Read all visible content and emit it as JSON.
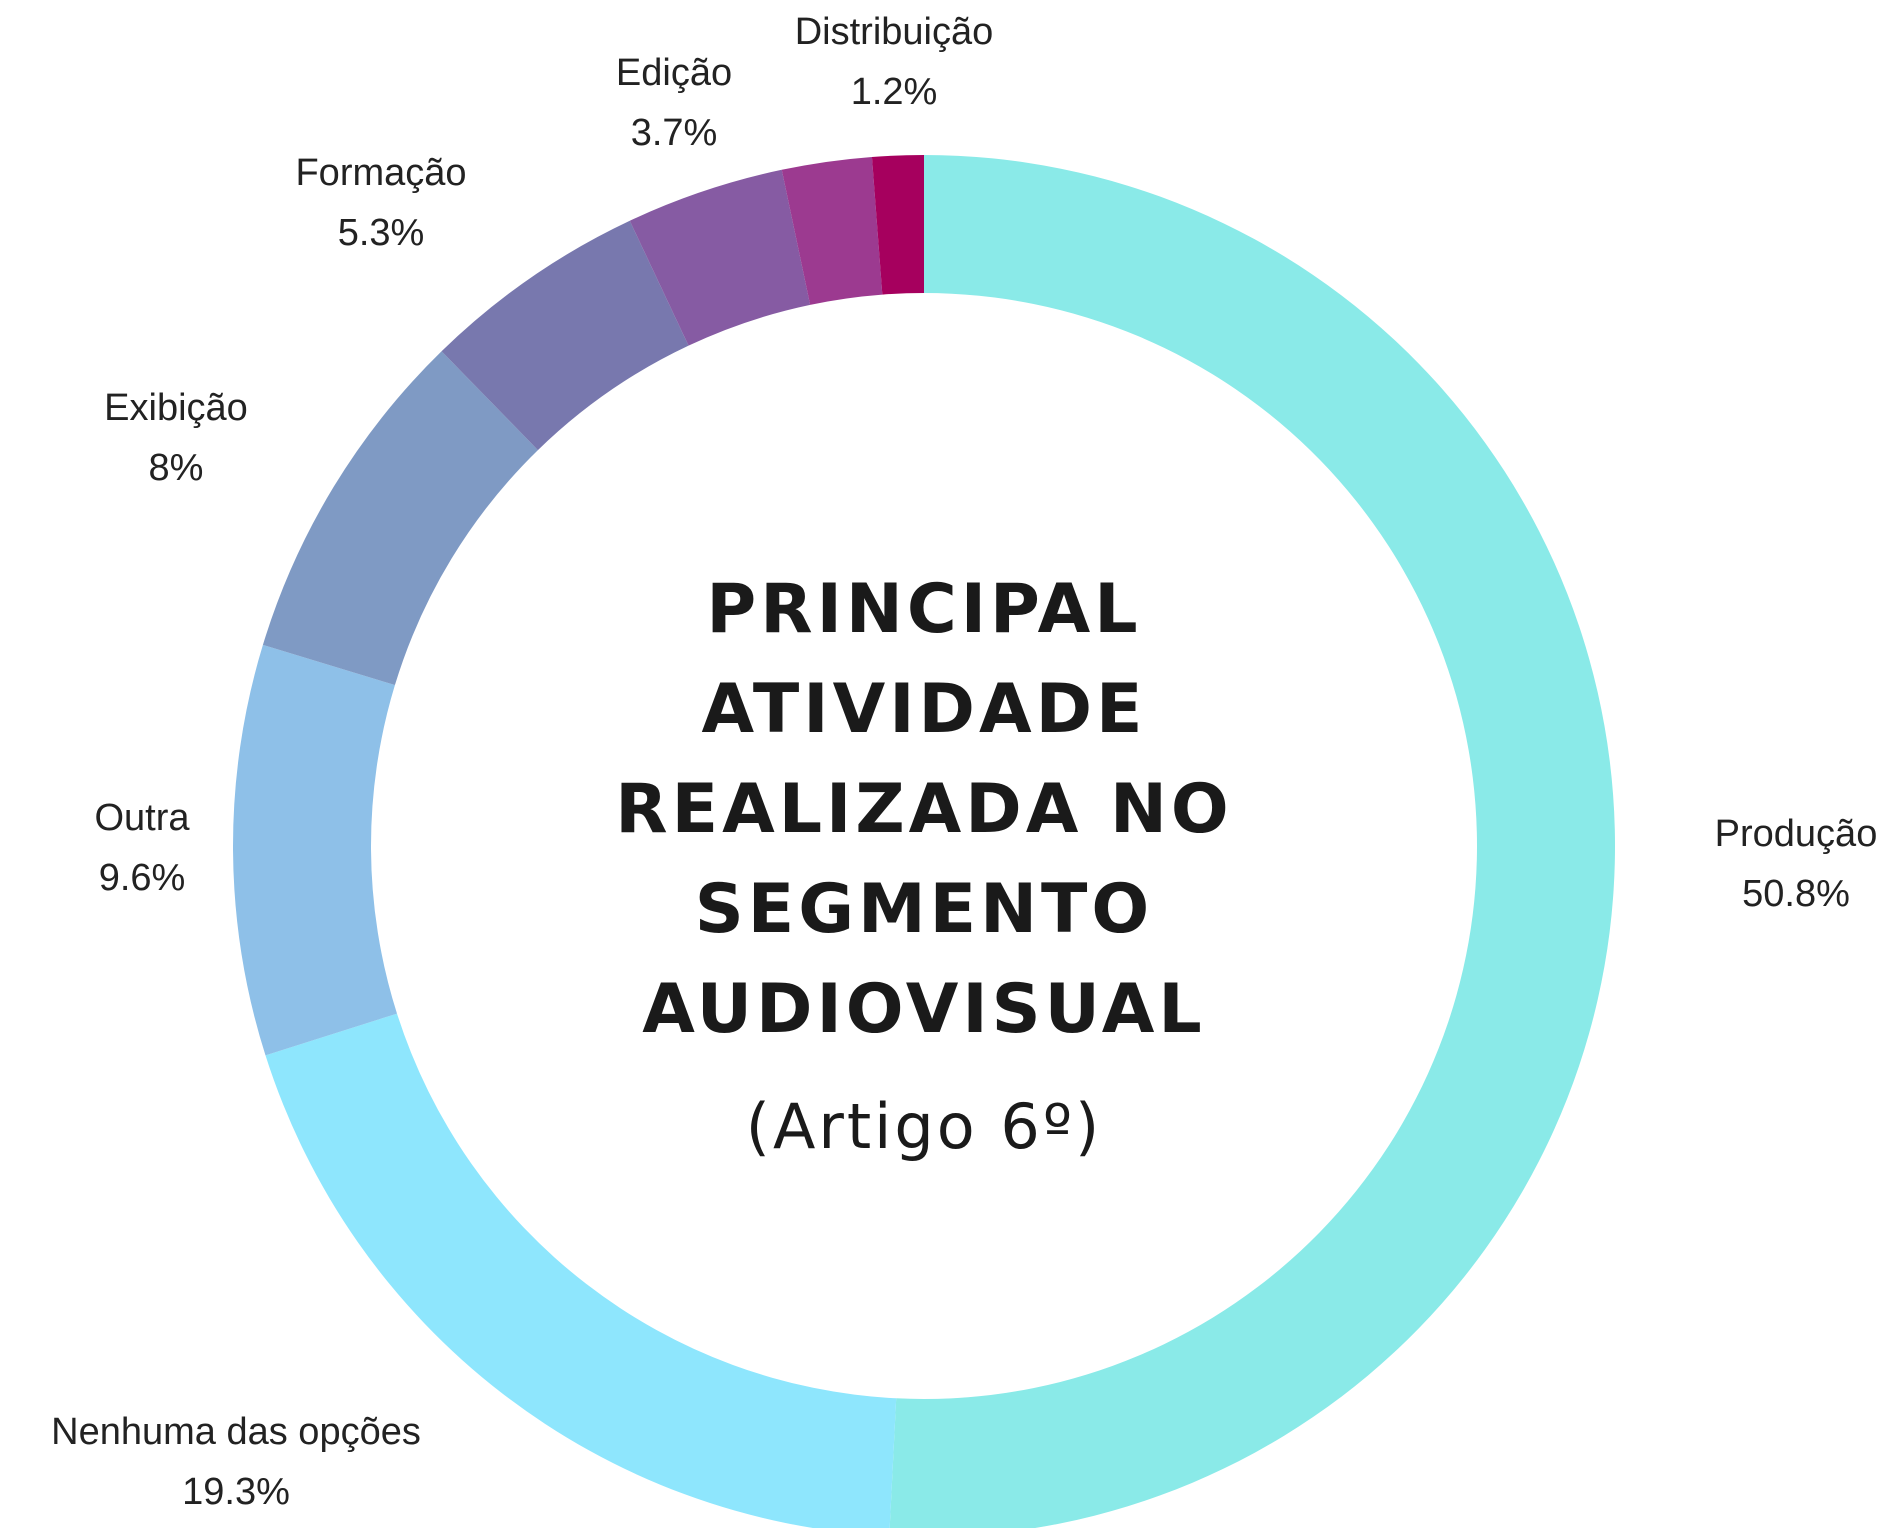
{
  "chart_data": {
    "type": "donut",
    "title": "PRINCIPAL ATIVIDADE REALIZADA NO SEGMENTO AUDIOVISUAL",
    "subtitle": "(Artigo 6º)",
    "categories": [
      "Produção",
      "Nenhuma das opções",
      "Outra",
      "Exibição",
      "Formação",
      "Edição",
      null,
      "Distribuição"
    ],
    "values": [
      50.8,
      19.3,
      9.6,
      8,
      5.3,
      3.7,
      2.1,
      1.2
    ],
    "value_labels": [
      "50.8%",
      "19.3%",
      "9.6%",
      "8%",
      "5.3%",
      "3.7%",
      null,
      "1.2%"
    ],
    "colors": [
      "#8aeae8",
      "#8ee6fd",
      "#8ec0e8",
      "#7f9ac4",
      "#7878ae",
      "#865ba3",
      "#9c3a90",
      "#a6005e"
    ]
  }
}
